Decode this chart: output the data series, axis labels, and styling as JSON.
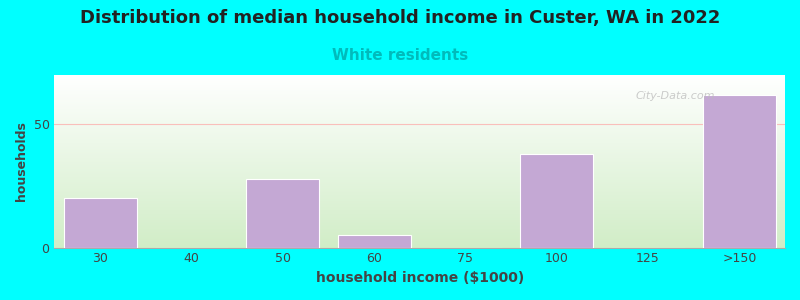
{
  "title": "Distribution of median household income in Custer, WA in 2022",
  "subtitle": "White residents",
  "xlabel": "household income ($1000)",
  "ylabel": "households",
  "title_fontsize": 13,
  "subtitle_fontsize": 11,
  "subtitle_color": "#00BBBB",
  "background_outer": "#00FFFF",
  "bar_color": "#C4A8D4",
  "bar_edge_color": "#FFFFFF",
  "categories": [
    "30",
    "40",
    "50",
    "60",
    "75",
    "100",
    "125",
    ">150"
  ],
  "values": [
    20,
    0,
    28,
    5,
    0,
    38,
    0,
    62
  ],
  "bar_positions": [
    0,
    1,
    2,
    3,
    4,
    5,
    6,
    7
  ],
  "ylim": [
    0,
    70
  ],
  "yticks": [
    0,
    50
  ],
  "grid_color": "#FF9999",
  "grid_alpha": 0.6,
  "watermark": "City-Data.com"
}
